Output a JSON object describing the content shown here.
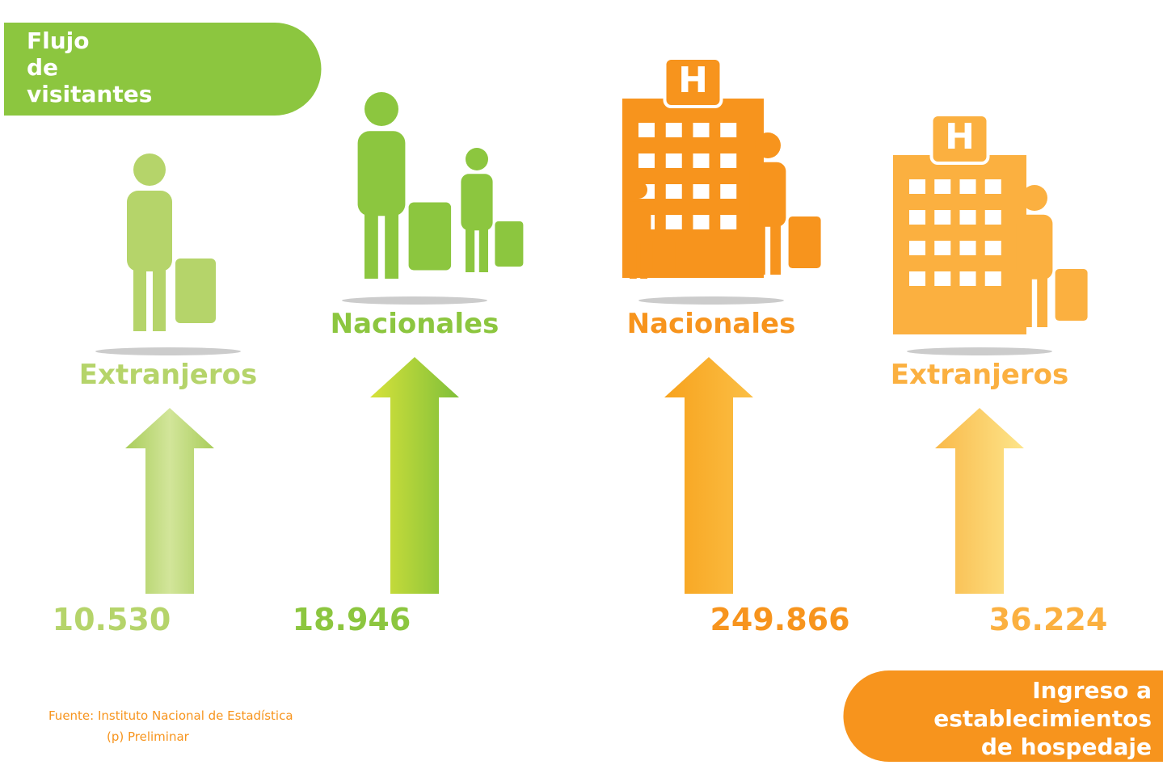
{
  "header": {
    "title_lines": [
      "Flujo",
      "de",
      "visitantes"
    ]
  },
  "items": [
    {
      "label": "Extranjeros",
      "value": "10.530"
    },
    {
      "label": "Nacionales",
      "value": "18.946"
    },
    {
      "label": "Nacionales",
      "value": "249.866"
    },
    {
      "label": "Extranjeros",
      "value": "36.224"
    }
  ],
  "footer": {
    "title_lines": [
      "Ingreso a",
      "establecimientos",
      "de hospedaje"
    ]
  },
  "source": {
    "lines": [
      "Fuente: Instituto Nacional de Estadística",
      "(p) Preliminar"
    ]
  }
}
